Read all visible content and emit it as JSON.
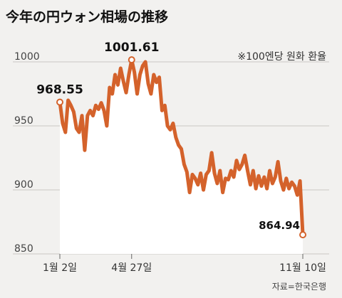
{
  "title": "今年の円ウォン相場の推移",
  "chart_data": {
    "type": "area",
    "note": "※100엔당 원화 환율",
    "source": "자료=한국은행",
    "y_ticks": [
      1000,
      950,
      900,
      850
    ],
    "ylim": [
      850,
      1012
    ],
    "x_tick_labels": [
      {
        "label": "1월 2일",
        "index": 0
      },
      {
        "label": "4월 27일",
        "index": 26
      },
      {
        "label": "11월 10일",
        "index": 88
      }
    ],
    "annotations": [
      {
        "label": "968.55",
        "index": 0,
        "value": 968.55
      },
      {
        "label": "1001.61",
        "index": 26,
        "value": 1001.61
      },
      {
        "label": "864.94",
        "index": 88,
        "value": 864.94
      }
    ],
    "series": [
      {
        "color": "#d4622b",
        "values": [
          968.55,
          952,
          945,
          970,
          966,
          961,
          948,
          945,
          958,
          931,
          958,
          962,
          958,
          966,
          963,
          968,
          962,
          950,
          980,
          975,
          990,
          982,
          995,
          985,
          976,
          990,
          1001.61,
          992,
          975,
          990,
          997,
          1000,
          983,
          975,
          990,
          984,
          988,
          962,
          966,
          950,
          947,
          952,
          941,
          935,
          932,
          920,
          914,
          898,
          912,
          909,
          904,
          913,
          900,
          912,
          915,
          929,
          913,
          905,
          915,
          898,
          909,
          908,
          915,
          910,
          923,
          916,
          920,
          927,
          915,
          904,
          915,
          901,
          911,
          903,
          910,
          901,
          915,
          905,
          910,
          922,
          907,
          900,
          909,
          901,
          906,
          903,
          896,
          907,
          864.94
        ]
      }
    ]
  }
}
